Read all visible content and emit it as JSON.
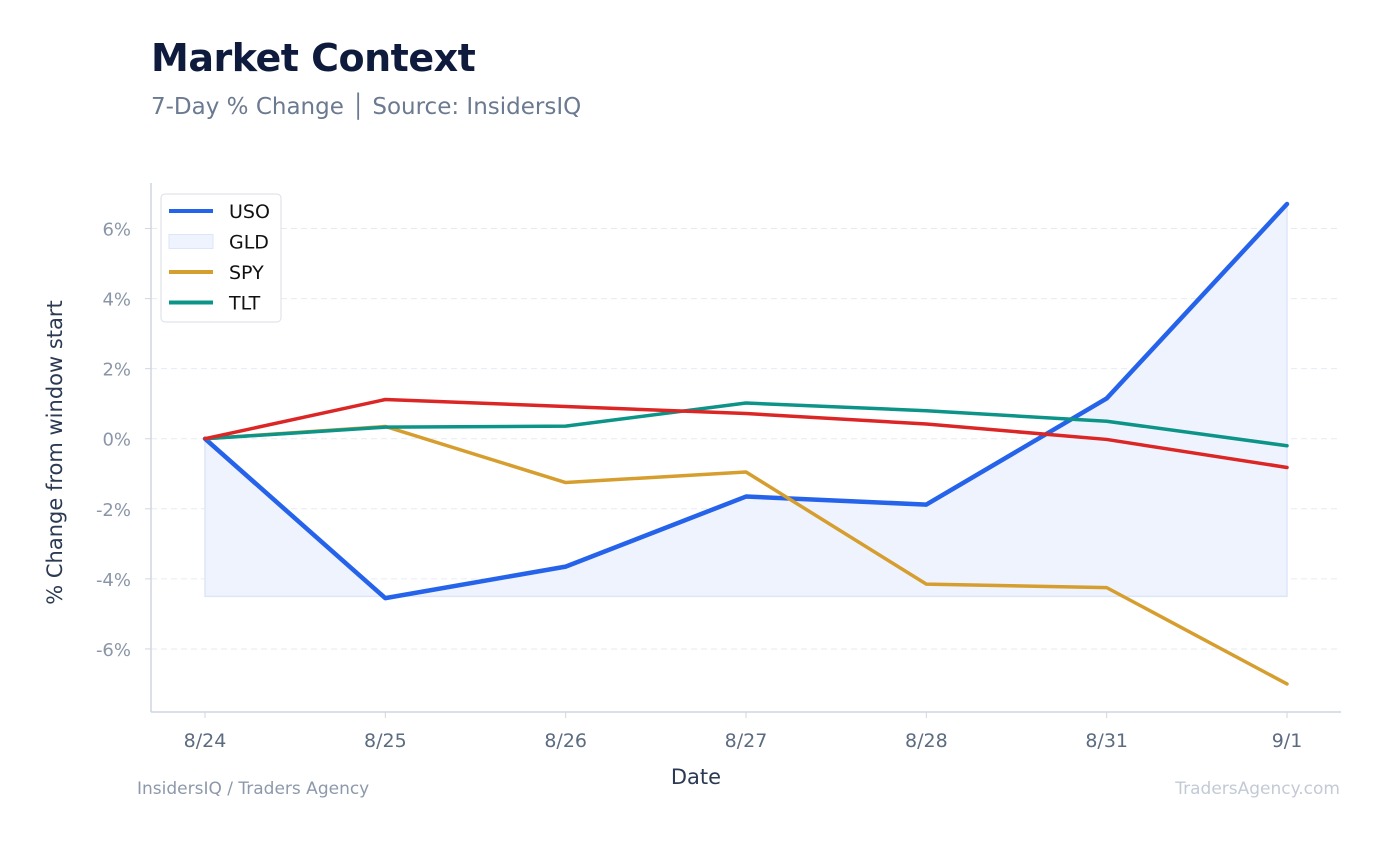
{
  "header": {
    "title": "Market Context",
    "subtitle": "7-Day % Change │ Source: InsidersIQ"
  },
  "footer": {
    "left": "InsidersIQ / Traders Agency",
    "right": "TradersAgency.com"
  },
  "chart_data": {
    "type": "line",
    "title": "Market Context",
    "subtitle": "7-Day % Change │ Source: InsidersIQ",
    "xlabel": "Date",
    "ylabel": "% Change from window start",
    "categories": [
      "8/24",
      "8/25",
      "8/26",
      "8/27",
      "8/28",
      "8/31",
      "9/1"
    ],
    "ylim": [
      -7.8,
      7.3
    ],
    "yticks": [
      -6,
      -4,
      -2,
      0,
      2,
      4,
      6
    ],
    "ytick_labels": [
      "-6%",
      "-4%",
      "-2%",
      "0%",
      "2%",
      "4%",
      "6%"
    ],
    "grid": true,
    "legend_position": "top-left",
    "fill_base": -4.5,
    "series": [
      {
        "name": "USO",
        "color": "#2563eb",
        "style": "line",
        "values": [
          0,
          -4.55,
          -3.65,
          -1.65,
          -1.88,
          1.15,
          6.7
        ]
      },
      {
        "name": "GLD",
        "color": "#dbe5fb",
        "style": "area",
        "values": [
          0,
          -4.55,
          -3.65,
          -1.65,
          -1.88,
          1.15,
          6.7
        ]
      },
      {
        "name": "SPY",
        "color": "#d69e2e",
        "style": "line",
        "values": [
          0,
          0.35,
          -1.25,
          -0.95,
          -4.15,
          -4.25,
          -7.0
        ]
      },
      {
        "name": "TLT",
        "color": "#0d9488",
        "style": "line",
        "values": [
          0,
          0.33,
          0.36,
          1.02,
          0.8,
          0.5,
          -0.2
        ]
      },
      {
        "name": "",
        "color": "#dc2626",
        "style": "line",
        "values": [
          0,
          1.12,
          0.92,
          0.72,
          0.42,
          -0.02,
          -0.82
        ]
      }
    ]
  }
}
